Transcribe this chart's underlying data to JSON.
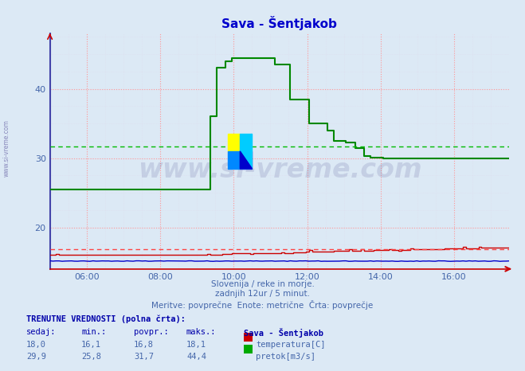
{
  "title": "Sava - Šentjakob",
  "title_color": "#0000cc",
  "bg_color": "#dce9f5",
  "plot_bg_color": "#dce9f5",
  "grid_color_major": "#ff9999",
  "grid_color_minor": "#ffcccc",
  "grid_color_minor2": "#ddddee",
  "ylim": [
    14,
    48
  ],
  "yticks": [
    20,
    30,
    40
  ],
  "xstart_hour": 5.0,
  "xend_hour": 17.5,
  "xtick_hours": [
    6,
    8,
    10,
    12,
    14,
    16
  ],
  "xtick_labels": [
    "06:00",
    "08:00",
    "10:00",
    "12:00",
    "14:00",
    "16:00"
  ],
  "subtitle_lines": [
    "Slovenija / reke in morje.",
    "zadnjih 12ur / 5 minut.",
    "Meritve: povprečne  Enote: metrične  Črta: povprečje"
  ],
  "footer_title": "TRENUTNE VREDNOSTI (polna črta):",
  "footer_cols": [
    "sedaj:",
    "min.:",
    "povpr.:",
    "maks.:"
  ],
  "footer_station": "Sava - Šentjakob",
  "footer_rows": [
    {
      "values": [
        "18,0",
        "16,1",
        "16,8",
        "18,1"
      ],
      "label": "temperatura[C]",
      "color": "#cc0000"
    },
    {
      "values": [
        "29,9",
        "25,8",
        "31,7",
        "44,4"
      ],
      "label": "pretok[m3/s]",
      "color": "#00aa00"
    }
  ],
  "temp_color": "#cc0000",
  "flow_color": "#008800",
  "height_color": "#0000cc",
  "avg_temp_color": "#ff4444",
  "avg_flow_color": "#00bb00",
  "avg_temp": 16.8,
  "avg_flow": 31.7,
  "watermark_text": "www.si-vreme.com",
  "watermark_color": "#1a1a6e",
  "watermark_alpha": 0.12,
  "left_label": "www.si-vreme.com",
  "left_label_color": "#8888bb",
  "spine_color_left": "#4444aa",
  "spine_color_bottom": "#cc0000"
}
